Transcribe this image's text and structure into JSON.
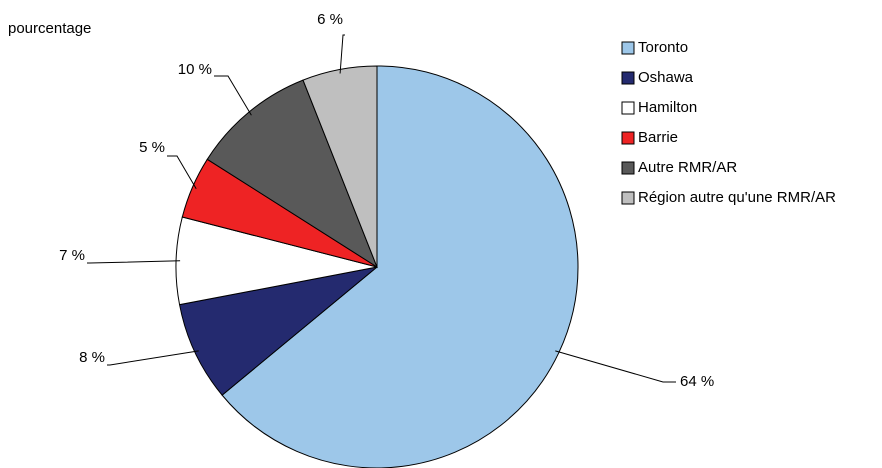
{
  "chart_data": {
    "type": "pie",
    "ylabel": "pourcentage",
    "legend_position": "right",
    "start_angle_deg": 0,
    "direction": "clockwise",
    "slices": [
      {
        "label": "Toronto",
        "value": 64,
        "display": "64 %",
        "color": "#9DC7E9"
      },
      {
        "label": "Oshawa",
        "value": 8,
        "display": "8 %",
        "color": "#242A6F"
      },
      {
        "label": "Hamilton",
        "value": 7,
        "display": "7 %",
        "color": "#FFFFFF"
      },
      {
        "label": "Barrie",
        "value": 5,
        "display": "5 %",
        "color": "#EE2324"
      },
      {
        "label": "Autre RMR/AR",
        "value": 10,
        "display": "10 %",
        "color": "#595959"
      },
      {
        "label": "Région autre qu'une RMR/AR",
        "value": 6,
        "display": "6 %",
        "color": "#BFBFBF"
      }
    ]
  }
}
